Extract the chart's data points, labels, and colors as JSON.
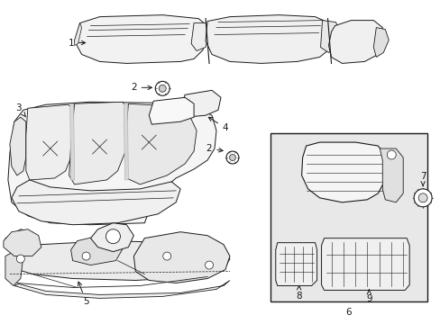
{
  "background_color": "#ffffff",
  "line_color": "#1a1a1a",
  "shaded_box_color": "#e8e8e8",
  "figsize": [
    4.89,
    3.6
  ],
  "dpi": 100,
  "xlim": [
    0,
    489
  ],
  "ylim": [
    0,
    360
  ]
}
